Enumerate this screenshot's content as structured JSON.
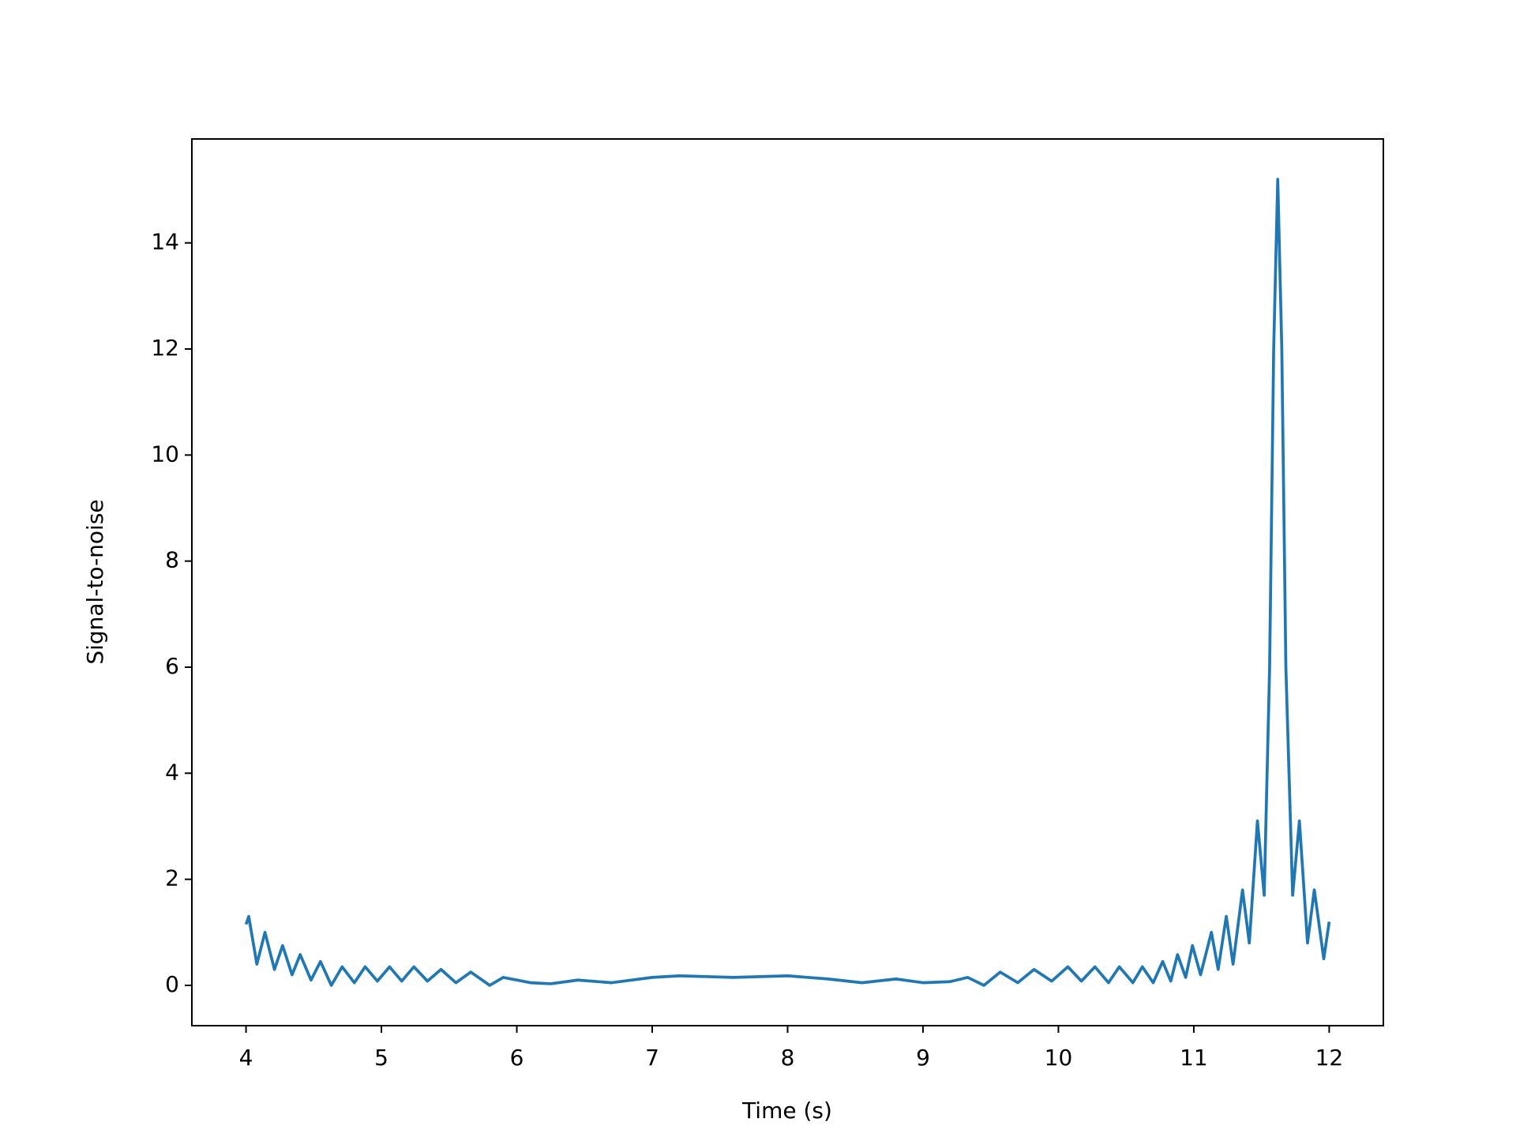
{
  "chart_data": {
    "type": "line",
    "xlabel": "Time (s)",
    "ylabel": "Signal-to-noise",
    "x": [
      4.0,
      4.02,
      4.08,
      4.14,
      4.21,
      4.27,
      4.34,
      4.4,
      4.48,
      4.55,
      4.63,
      4.71,
      4.8,
      4.88,
      4.97,
      5.06,
      5.15,
      5.24,
      5.34,
      5.44,
      5.55,
      5.66,
      5.8,
      5.9,
      6.0,
      6.1,
      6.25,
      6.45,
      6.7,
      7.0,
      7.2,
      7.6,
      8.0,
      8.3,
      8.55,
      8.8,
      9.0,
      9.2,
      9.33,
      9.45,
      9.57,
      9.7,
      9.82,
      9.95,
      10.07,
      10.17,
      10.27,
      10.37,
      10.45,
      10.55,
      10.62,
      10.7,
      10.77,
      10.83,
      10.88,
      10.94,
      10.99,
      11.05,
      11.13,
      11.18,
      11.24,
      11.29,
      11.36,
      11.41,
      11.47,
      11.52,
      11.56,
      11.59,
      11.62,
      11.65,
      11.68,
      11.73,
      11.78,
      11.84,
      11.89,
      11.96,
      12.0
    ],
    "values": [
      1.15,
      1.3,
      0.4,
      1.0,
      0.3,
      0.75,
      0.2,
      0.58,
      0.1,
      0.45,
      0.0,
      0.35,
      0.05,
      0.35,
      0.08,
      0.35,
      0.08,
      0.35,
      0.08,
      0.3,
      0.05,
      0.25,
      0.0,
      0.15,
      0.1,
      0.05,
      0.03,
      0.1,
      0.05,
      0.15,
      0.18,
      0.15,
      0.18,
      0.12,
      0.05,
      0.12,
      0.05,
      0.07,
      0.15,
      0.0,
      0.25,
      0.05,
      0.3,
      0.08,
      0.35,
      0.08,
      0.35,
      0.05,
      0.35,
      0.05,
      0.35,
      0.05,
      0.45,
      0.08,
      0.58,
      0.15,
      0.75,
      0.2,
      1.0,
      0.3,
      1.3,
      0.4,
      1.8,
      0.8,
      3.1,
      1.7,
      6,
      12,
      15.2,
      12,
      6,
      1.7,
      3.1,
      0.8,
      1.8,
      0.5,
      1.2
    ],
    "color": "#1f77b4",
    "xlim": [
      3.6,
      12.4
    ],
    "xticks": [
      4,
      5,
      6,
      7,
      8,
      9,
      10,
      11,
      12
    ],
    "ylim": [
      -0.76,
      15.96
    ],
    "yticks": [
      0,
      2,
      4,
      6,
      8,
      10,
      12,
      14
    ],
    "grid": false
  }
}
